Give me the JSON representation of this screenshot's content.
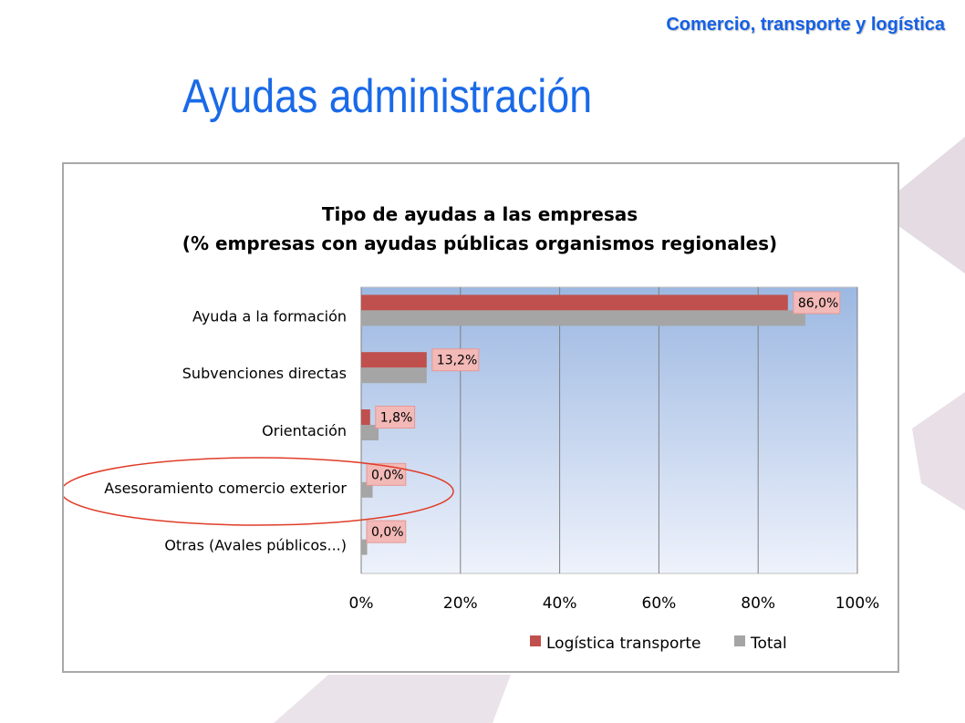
{
  "header": {
    "section_label": "Comercio, transporte y logística",
    "title": "Ayudas administración"
  },
  "colors": {
    "accent_blue": "#1a6ae8",
    "series_logistica": "#c0504d",
    "series_total": "#a5a5a5",
    "highlight_ellipse": "#e03c28"
  },
  "highlight": {
    "category": "Asesoramiento comercio exterior",
    "shape": "ellipse"
  },
  "chart_data": {
    "type": "bar",
    "orientation": "horizontal",
    "title_line1": "Tipo de ayudas  a las empresas",
    "title_line2": "(% empresas con ayudas públicas organismos regionales)",
    "categories": [
      "Ayuda a la formación",
      "Subvenciones directas",
      "Orientación",
      "Asesoramiento comercio exterior",
      "Otras (Avales públicos...)"
    ],
    "series": [
      {
        "name": "Logística transporte",
        "values": [
          86.0,
          13.2,
          1.8,
          0.0,
          0.0
        ],
        "labels": [
          "86,0%",
          "13,2%",
          "1,8%",
          "0,0%",
          "0,0%"
        ]
      },
      {
        "name": "Total",
        "values": [
          89.5,
          13.2,
          3.5,
          2.3,
          1.2
        ]
      }
    ],
    "x_ticks": [
      "0%",
      "20%",
      "40%",
      "60%",
      "80%",
      "100%"
    ],
    "xlim": [
      0,
      100
    ],
    "grid": true,
    "legend_position": "bottom-right"
  }
}
